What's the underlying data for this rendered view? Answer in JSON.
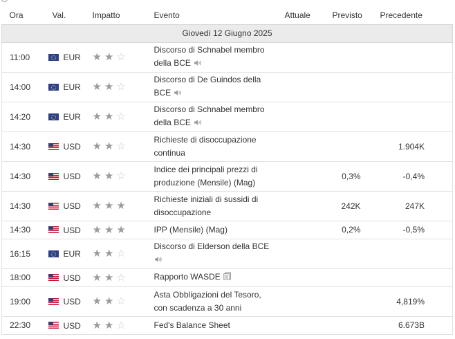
{
  "header": {
    "ora": "Ora",
    "val": "Val.",
    "impatto": "Impatto",
    "evento": "Evento",
    "attuale": "Attuale",
    "previsto": "Previsto",
    "precedente": "Precedente"
  },
  "date_label": "Giovedì 12 Giugno 2025",
  "events": [
    {
      "time": "11:00",
      "flag": "eu-flag-icon",
      "currency": "EUR",
      "importance": 2,
      "event_line1": "Discorso di Schnabel membro",
      "event_line2": "della BCE",
      "icon": "speaker-icon",
      "actual": "",
      "forecast": "",
      "previous": ""
    },
    {
      "time": "14:00",
      "flag": "eu-flag-icon",
      "currency": "EUR",
      "importance": 2,
      "event_line1": "Discorso di De Guindos della",
      "event_line2": "BCE",
      "icon": "speaker-icon",
      "actual": "",
      "forecast": "",
      "previous": ""
    },
    {
      "time": "14:20",
      "flag": "eu-flag-icon",
      "currency": "EUR",
      "importance": 2,
      "event_line1": "Discorso di Schnabel membro",
      "event_line2": "della BCE",
      "icon": "speaker-icon",
      "actual": "",
      "forecast": "",
      "previous": ""
    },
    {
      "time": "14:30",
      "flag": "us-flag-icon",
      "currency": "USD",
      "importance": 2,
      "event_line1": "Richieste di disoccupazione",
      "event_line2": "continua",
      "icon": "",
      "actual": "",
      "forecast": "",
      "previous": "1.904K"
    },
    {
      "time": "14:30",
      "flag": "us-flag-icon",
      "currency": "USD",
      "importance": 2,
      "event_line1": "Indice dei principali prezzi di",
      "event_line2": "produzione (Mensile) (Mag)",
      "icon": "",
      "actual": "",
      "forecast": "0,3%",
      "previous": "-0,4%"
    },
    {
      "time": "14:30",
      "flag": "us-flag-icon",
      "currency": "USD",
      "importance": 3,
      "event_line1": "Richieste iniziali di sussidi di",
      "event_line2": "disoccupazione",
      "icon": "",
      "actual": "",
      "forecast": "242K",
      "previous": "247K"
    },
    {
      "time": "14:30",
      "flag": "us-flag-icon",
      "currency": "USD",
      "importance": 3,
      "event_line1": "IPP (Mensile) (Mag)",
      "event_line2": "",
      "icon": "",
      "actual": "",
      "forecast": "0,2%",
      "previous": "-0,5%"
    },
    {
      "time": "16:15",
      "flag": "eu-flag-icon",
      "currency": "EUR",
      "importance": 2,
      "event_line1": "Discorso di Elderson della BCE",
      "event_line2": "",
      "icon": "speaker-icon",
      "icon_newline": true,
      "actual": "",
      "forecast": "",
      "previous": ""
    },
    {
      "time": "18:00",
      "flag": "us-flag-icon",
      "currency": "USD",
      "importance": 2,
      "event_line1": "Rapporto WASDE",
      "event_line2": "",
      "icon": "report-icon",
      "actual": "",
      "forecast": "",
      "previous": ""
    },
    {
      "time": "19:00",
      "flag": "us-flag-icon",
      "currency": "USD",
      "importance": 2,
      "event_line1": "Asta Obbligazioni del Tesoro,",
      "event_line2": "con scadenza a 30 anni",
      "icon": "",
      "actual": "",
      "forecast": "",
      "previous": "4,819%"
    },
    {
      "time": "22:30",
      "flag": "us-flag-icon",
      "currency": "USD",
      "importance": 2,
      "event_line1": "Fed's Balance Sheet",
      "event_line2": "",
      "icon": "",
      "actual": "",
      "forecast": "",
      "previous": "6.673B"
    }
  ],
  "row_heights": [
    43,
    43,
    43,
    43,
    43,
    43,
    26,
    43,
    26,
    43,
    26
  ]
}
